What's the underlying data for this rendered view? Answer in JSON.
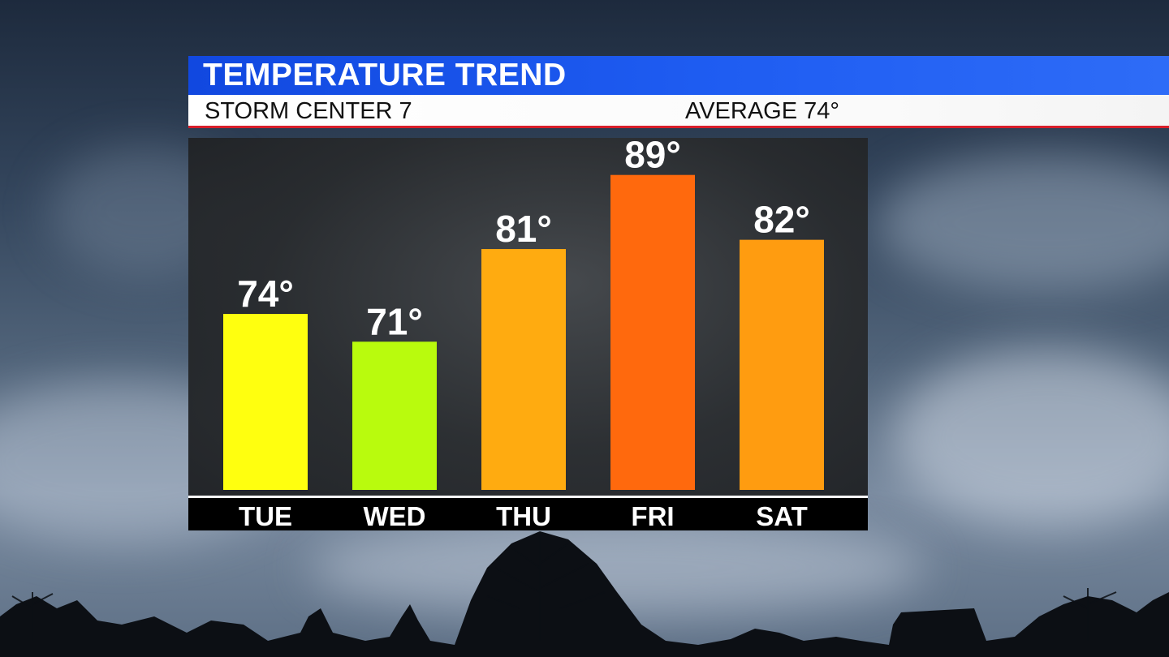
{
  "header": {
    "title": "TEMPERATURE TREND",
    "station": "STORM CENTER 7",
    "average": "AVERAGE 74°"
  },
  "colors": {
    "header_blue": "#1f5df2",
    "accent_red": "#d81e2a",
    "bar_74": "#ffff0f",
    "bar_71": "#b9fb0d",
    "bar_81": "#ffab10",
    "bar_89": "#ff690d",
    "bar_82": "#ff9c10"
  },
  "chart_data": {
    "type": "bar",
    "title": "TEMPERATURE TREND",
    "categories": [
      "TUE",
      "WED",
      "THU",
      "FRI",
      "SAT"
    ],
    "values": [
      74,
      71,
      81,
      89,
      82
    ],
    "value_labels": [
      "74°",
      "71°",
      "81°",
      "89°",
      "82°"
    ],
    "bar_colors": [
      "#ffff0f",
      "#b9fb0d",
      "#ffab10",
      "#ff690d",
      "#ff9c10"
    ],
    "ylim": [
      55,
      93
    ],
    "grid": false,
    "legend": "none"
  }
}
